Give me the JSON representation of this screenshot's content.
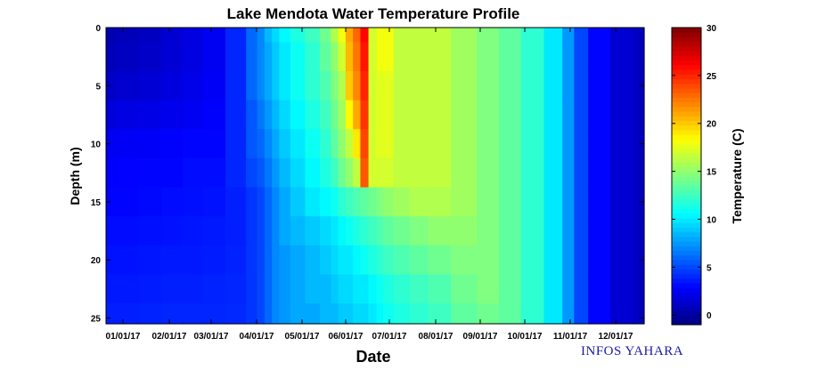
{
  "chart_data": {
    "type": "heatmap",
    "title": "Lake Mendota Water Temperature Profile",
    "xlabel": "Date",
    "ylabel": "Depth (m)",
    "colorbar_label": "Temperature (C)",
    "colormap": "jet",
    "clim": [
      -1,
      30
    ],
    "colorbar_ticks": [
      0,
      5,
      10,
      15,
      20,
      25,
      30
    ],
    "x_tick_labels": [
      "01/01/17",
      "02/01/17",
      "03/01/17",
      "04/01/17",
      "05/01/17",
      "06/01/17",
      "07/01/17",
      "08/01/17",
      "09/01/17",
      "10/01/17",
      "11/01/17",
      "12/01/17"
    ],
    "x_range_days": [
      0,
      365
    ],
    "ylim": [
      0,
      25.5
    ],
    "y_ticks": [
      0,
      5,
      10,
      15,
      20,
      25
    ],
    "y_reversed": true,
    "depths": [
      0,
      2.5,
      5,
      7.5,
      10,
      12.5,
      15,
      17.5,
      20,
      22.5,
      25
    ],
    "time_days": [
      0,
      15,
      30,
      45,
      59,
      72,
      90,
      100,
      105,
      110,
      115,
      120,
      130,
      140,
      150,
      155,
      160,
      165,
      170,
      175,
      181,
      186,
      190,
      200,
      212,
      225,
      243,
      260,
      273,
      290,
      304,
      315,
      320,
      334,
      350,
      365
    ],
    "temperature_c": [
      [
        0.5,
        0.8,
        1.0,
        1.5,
        2.0,
        2.5,
        4.0,
        6.0,
        7.0,
        8.5,
        9.5,
        10.5,
        11.5,
        12.5,
        14.0,
        16.0,
        18.0,
        21.0,
        23.0,
        26.0,
        17.0,
        18.0,
        18.0,
        16.5,
        16.5,
        16.5,
        15.5,
        14.5,
        13.5,
        12.0,
        10.0,
        7.5,
        5.0,
        3.0,
        1.5,
        1.0
      ],
      [
        0.8,
        1.0,
        1.2,
        1.6,
        2.0,
        2.5,
        4.0,
        6.0,
        7.0,
        8.0,
        9.0,
        10.0,
        11.0,
        12.0,
        13.5,
        15.0,
        17.0,
        20.5,
        22.5,
        25.5,
        17.0,
        18.0,
        18.0,
        16.5,
        16.5,
        16.5,
        15.5,
        14.5,
        13.5,
        12.0,
        10.0,
        7.5,
        5.0,
        3.0,
        1.5,
        1.0
      ],
      [
        1.2,
        1.4,
        1.6,
        1.9,
        2.2,
        2.6,
        4.0,
        6.0,
        7.0,
        8.0,
        9.0,
        10.0,
        11.0,
        12.0,
        13.0,
        14.5,
        16.0,
        20.0,
        22.0,
        25.0,
        17.0,
        17.5,
        17.5,
        16.5,
        16.5,
        16.5,
        15.5,
        14.5,
        13.5,
        12.0,
        10.0,
        7.5,
        5.0,
        3.0,
        1.5,
        1.0
      ],
      [
        1.8,
        2.0,
        2.1,
        2.3,
        2.5,
        2.8,
        4.0,
        5.5,
        6.5,
        7.5,
        8.5,
        9.5,
        10.5,
        11.5,
        12.5,
        14.0,
        15.5,
        18.5,
        21.0,
        24.5,
        17.0,
        17.5,
        17.5,
        16.5,
        16.5,
        16.5,
        15.5,
        14.5,
        13.5,
        12.0,
        10.0,
        7.5,
        5.0,
        3.0,
        1.5,
        1.0
      ],
      [
        2.5,
        2.6,
        2.7,
        2.8,
        3.0,
        3.0,
        4.0,
        5.5,
        6.0,
        7.0,
        8.0,
        9.0,
        10.0,
        11.0,
        12.0,
        13.5,
        15.0,
        16.5,
        19.0,
        24.0,
        17.0,
        17.5,
        17.5,
        16.5,
        16.5,
        16.5,
        15.5,
        14.5,
        13.5,
        12.0,
        10.0,
        7.5,
        5.0,
        3.0,
        1.5,
        1.0
      ],
      [
        2.8,
        2.9,
        3.0,
        3.0,
        3.2,
        3.2,
        4.0,
        5.0,
        5.5,
        6.5,
        7.5,
        8.5,
        9.5,
        10.5,
        11.5,
        12.5,
        14.0,
        15.0,
        16.5,
        23.5,
        17.0,
        17.0,
        17.0,
        16.5,
        16.5,
        16.5,
        15.5,
        14.5,
        13.5,
        12.0,
        10.0,
        7.5,
        5.0,
        3.0,
        1.5,
        1.0
      ],
      [
        3.0,
        3.0,
        3.1,
        3.2,
        3.3,
        3.4,
        3.8,
        4.5,
        5.0,
        6.0,
        7.0,
        8.0,
        9.0,
        10.0,
        10.5,
        11.0,
        12.0,
        12.5,
        13.0,
        13.5,
        14.0,
        14.5,
        15.0,
        15.5,
        16.0,
        16.0,
        15.5,
        14.5,
        13.5,
        12.0,
        10.0,
        7.5,
        5.0,
        3.0,
        1.5,
        1.0
      ],
      [
        3.2,
        3.2,
        3.3,
        3.4,
        3.5,
        3.6,
        3.8,
        4.5,
        5.0,
        6.0,
        7.0,
        8.0,
        8.5,
        9.0,
        9.5,
        10.0,
        10.5,
        11.0,
        11.5,
        12.0,
        12.5,
        13.0,
        13.5,
        14.0,
        14.5,
        15.0,
        15.0,
        14.5,
        13.5,
        12.0,
        10.0,
        7.5,
        5.0,
        3.0,
        1.5,
        1.0
      ],
      [
        3.4,
        3.4,
        3.5,
        3.6,
        3.6,
        3.7,
        3.9,
        4.5,
        5.0,
        6.0,
        7.0,
        7.5,
        8.0,
        8.5,
        9.0,
        9.5,
        10.0,
        10.0,
        10.5,
        11.0,
        11.5,
        12.0,
        12.5,
        13.0,
        13.5,
        14.0,
        14.5,
        14.5,
        13.5,
        12.0,
        10.0,
        7.5,
        5.0,
        3.0,
        1.5,
        1.0
      ],
      [
        3.6,
        3.6,
        3.7,
        3.8,
        3.8,
        3.9,
        4.0,
        4.5,
        5.0,
        6.0,
        7.0,
        7.5,
        8.0,
        8.5,
        8.5,
        9.0,
        9.5,
        9.5,
        10.0,
        10.0,
        10.5,
        11.0,
        11.5,
        12.0,
        12.5,
        13.0,
        14.0,
        14.5,
        13.5,
        12.0,
        10.0,
        7.5,
        5.0,
        3.0,
        1.5,
        1.0
      ],
      [
        3.8,
        3.8,
        3.9,
        4.0,
        4.0,
        4.0,
        4.1,
        4.5,
        5.0,
        6.0,
        7.0,
        7.5,
        8.0,
        8.0,
        8.5,
        8.5,
        9.0,
        9.0,
        9.5,
        9.5,
        10.0,
        10.5,
        11.0,
        11.5,
        12.0,
        12.5,
        13.5,
        14.0,
        13.5,
        12.0,
        10.0,
        7.5,
        5.0,
        3.0,
        1.5,
        1.0
      ]
    ]
  },
  "watermark": "INFOS YAHARA"
}
